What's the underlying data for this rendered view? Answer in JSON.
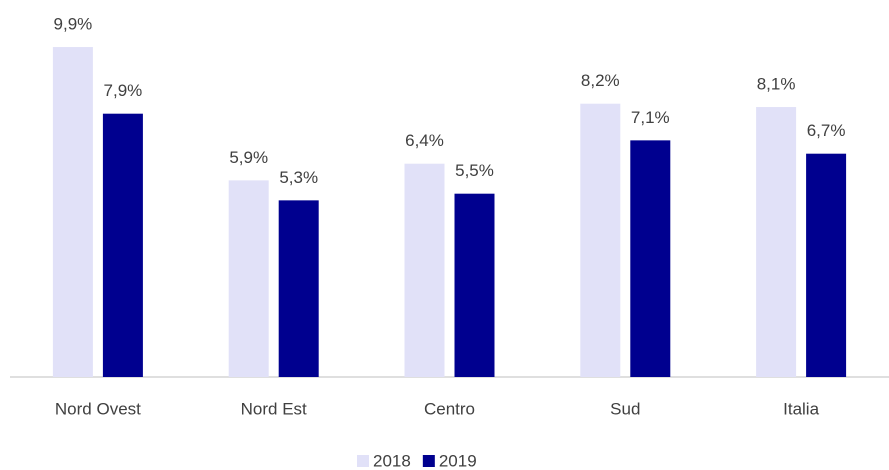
{
  "chart_data": {
    "type": "bar",
    "categories": [
      "Nord Ovest",
      "Nord Est",
      "Centro",
      "Sud",
      "Italia"
    ],
    "series": [
      {
        "name": "2018",
        "color": "#e1e1f8",
        "values": [
          9.9,
          5.9,
          6.4,
          8.2,
          8.1
        ],
        "value_labels": [
          "9,9%",
          "5,9%",
          "6,4%",
          "8,2%",
          "8,1%"
        ]
      },
      {
        "name": "2019",
        "color": "#00008f",
        "values": [
          7.9,
          5.3,
          5.5,
          7.1,
          6.7
        ],
        "value_labels": [
          "7,9%",
          "5,3%",
          "5,5%",
          "7,1%",
          "6,7%"
        ]
      }
    ],
    "legend": "bottom"
  }
}
